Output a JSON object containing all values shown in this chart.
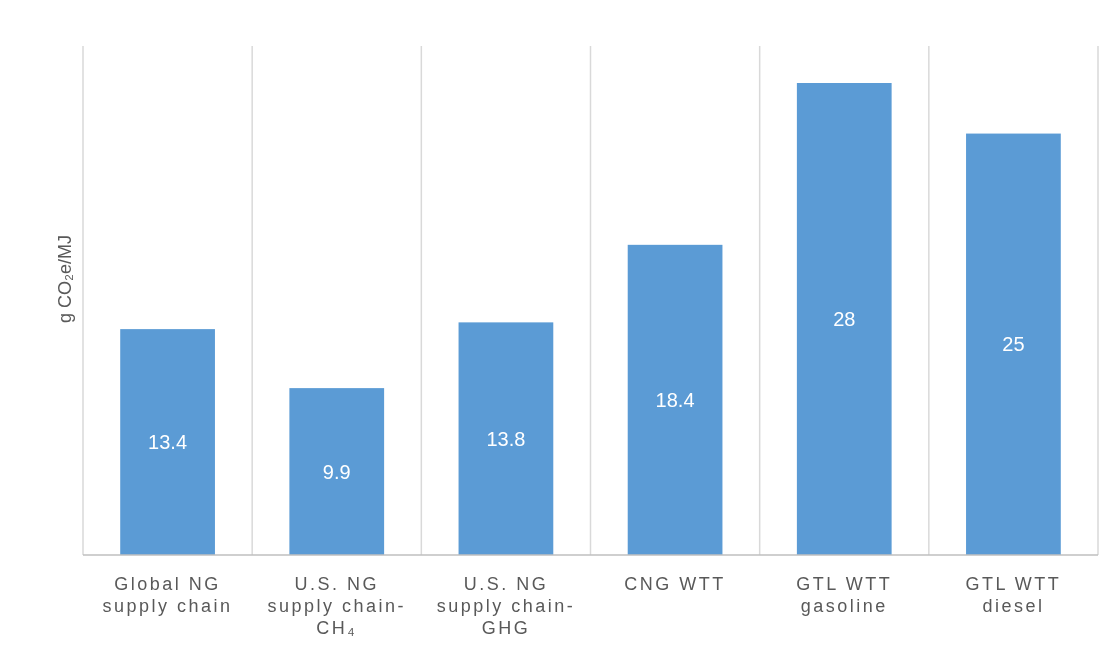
{
  "chart_data": {
    "type": "bar",
    "ylabel": "g CO₂e/MJ",
    "categories": [
      "Global NG supply chain",
      "U.S. NG supply chain-CH₄",
      "U.S. NG supply chain-GHG",
      "CNG WTT",
      "GTL WTT gasoline",
      "GTL WTT diesel"
    ],
    "values": [
      13.4,
      9.9,
      13.8,
      18.4,
      28,
      25
    ],
    "color": "#5b9bd5",
    "data_labels": true,
    "grid": "x"
  }
}
